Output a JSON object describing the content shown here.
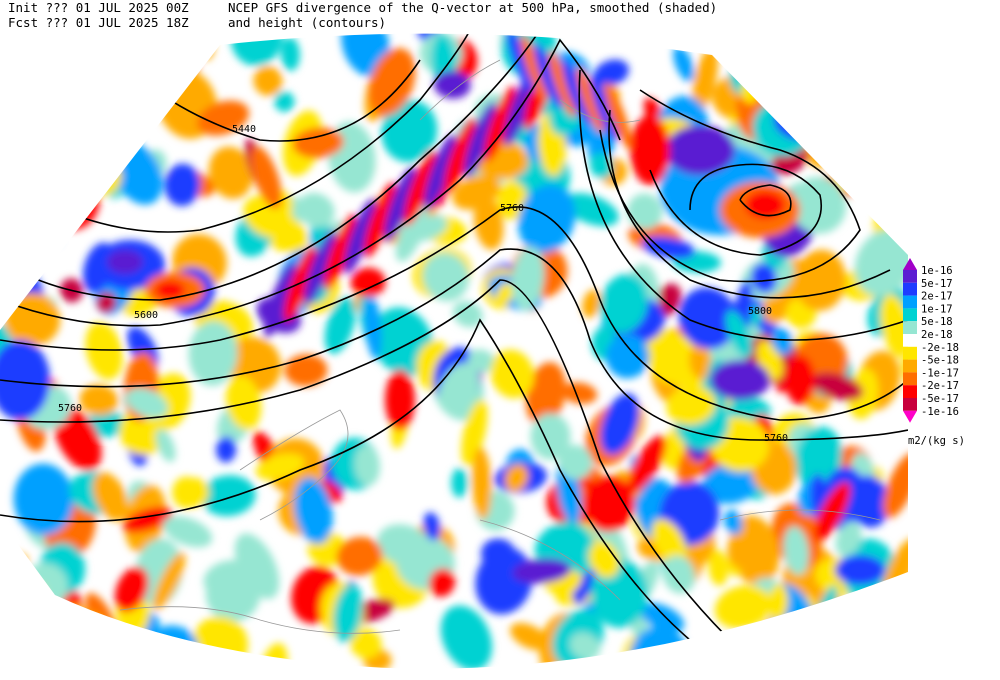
{
  "header": {
    "init": "Init  ??? 01 JUL 2025 00Z",
    "fcst": "Fcst ??? 01 JUL 2025 18Z",
    "title_line1": "NCEP GFS divergence of the Q-vector at 500 hPa, smoothed (shaded)",
    "title_line2": "and height (contours)"
  },
  "contour_labels": [
    "5440",
    "5600",
    "5760",
    "5760",
    "5800",
    "5760"
  ],
  "colorbar": {
    "labels": [
      "1e-16",
      "5e-17",
      "2e-17",
      "1e-17",
      "5e-18",
      "2e-18",
      "-2e-18",
      "-5e-18",
      "-1e-17",
      "-2e-17",
      "-5e-17",
      "-1e-16"
    ],
    "units": "m2/(kg s)"
  }
}
